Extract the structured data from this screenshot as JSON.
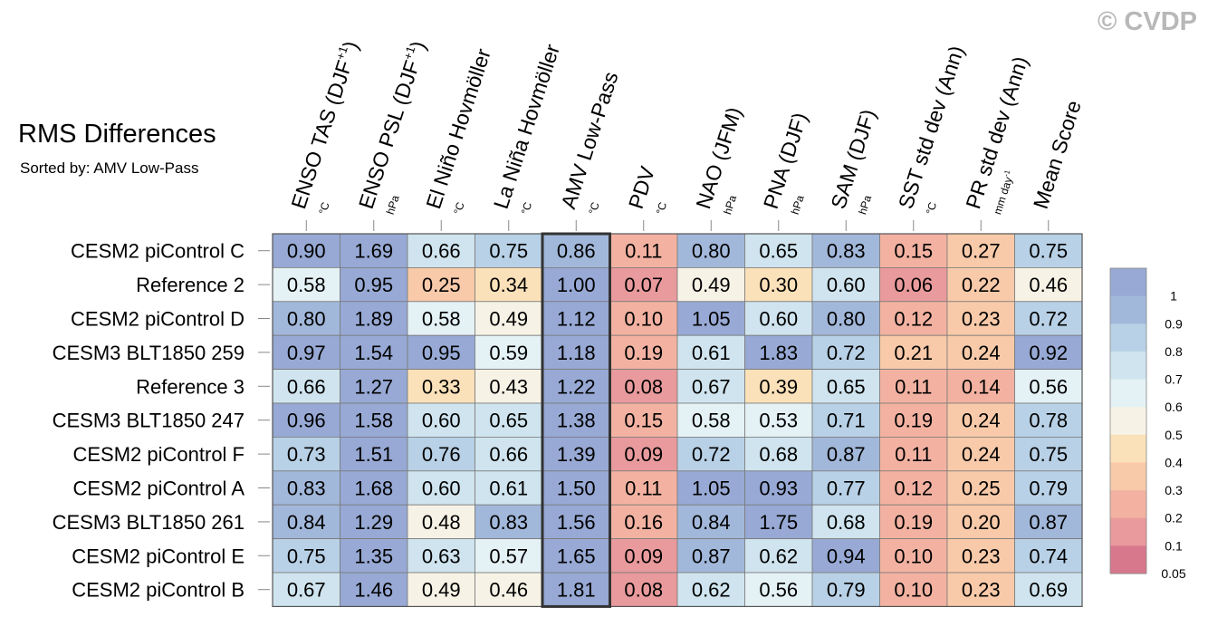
{
  "watermark": "© CVDP",
  "title": "RMS Differences",
  "subtitle": "Sorted by: AMV Low-Pass",
  "chart_data": {
    "type": "heatmap",
    "title": "RMS Differences",
    "sorted_by": "AMV Low-Pass",
    "highlight_column": 4,
    "columns": [
      {
        "label": "ENSO TAS (DJF",
        "sup": "+1",
        "close": ")",
        "unit": "°C"
      },
      {
        "label": "ENSO PSL (DJF",
        "sup": "+1",
        "close": ")",
        "unit": "hPa"
      },
      {
        "label": "El Niño Hovmöller",
        "sup": "",
        "close": "",
        "unit": "°C"
      },
      {
        "label": "La Niña Hovmöller",
        "sup": "",
        "close": "",
        "unit": "°C"
      },
      {
        "label": "AMV Low-Pass",
        "sup": "",
        "close": "",
        "unit": "°C"
      },
      {
        "label": "PDV",
        "sup": "",
        "close": "",
        "unit": "°C"
      },
      {
        "label": "NAO (JFM)",
        "sup": "",
        "close": "",
        "unit": "hPa"
      },
      {
        "label": "PNA (DJF)",
        "sup": "",
        "close": "",
        "unit": "hPa"
      },
      {
        "label": "SAM (DJF)",
        "sup": "",
        "close": "",
        "unit": "hPa"
      },
      {
        "label": "SST std dev (Ann)",
        "sup": "",
        "close": "",
        "unit": "°C"
      },
      {
        "label": "PR std dev (Ann)",
        "sup": "",
        "close": "",
        "unit": "mm day",
        "unit_sup": "-1"
      },
      {
        "label": "Mean Score",
        "sup": "",
        "close": "",
        "unit": ""
      }
    ],
    "rows": [
      "CESM2 piControl C",
      "Reference 2",
      "CESM2 piControl D",
      "CESM3 BLT1850 259",
      "Reference 3",
      "CESM3 BLT1850 247",
      "CESM2 piControl F",
      "CESM2 piControl A",
      "CESM3 BLT1850 261",
      "CESM2 piControl E",
      "CESM2 piControl B"
    ],
    "values": [
      [
        "0.90",
        "1.69",
        "0.66",
        "0.75",
        "0.86",
        "0.11",
        "0.80",
        "0.65",
        "0.83",
        "0.15",
        "0.27",
        "0.75"
      ],
      [
        "0.58",
        "0.95",
        "0.25",
        "0.34",
        "1.00",
        "0.07",
        "0.49",
        "0.30",
        "0.60",
        "0.06",
        "0.22",
        "0.46"
      ],
      [
        "0.80",
        "1.89",
        "0.58",
        "0.49",
        "1.12",
        "0.10",
        "1.05",
        "0.60",
        "0.80",
        "0.12",
        "0.23",
        "0.72"
      ],
      [
        "0.97",
        "1.54",
        "0.95",
        "0.59",
        "1.18",
        "0.19",
        "0.61",
        "1.83",
        "0.72",
        "0.21",
        "0.24",
        "0.92"
      ],
      [
        "0.66",
        "1.27",
        "0.33",
        "0.43",
        "1.22",
        "0.08",
        "0.67",
        "0.39",
        "0.65",
        "0.11",
        "0.14",
        "0.56"
      ],
      [
        "0.96",
        "1.58",
        "0.60",
        "0.65",
        "1.38",
        "0.15",
        "0.58",
        "0.53",
        "0.71",
        "0.19",
        "0.24",
        "0.78"
      ],
      [
        "0.73",
        "1.51",
        "0.76",
        "0.66",
        "1.39",
        "0.09",
        "0.72",
        "0.68",
        "0.87",
        "0.11",
        "0.24",
        "0.75"
      ],
      [
        "0.83",
        "1.68",
        "0.60",
        "0.61",
        "1.50",
        "0.11",
        "1.05",
        "0.93",
        "0.77",
        "0.12",
        "0.25",
        "0.79"
      ],
      [
        "0.84",
        "1.29",
        "0.48",
        "0.83",
        "1.56",
        "0.16",
        "0.84",
        "1.75",
        "0.68",
        "0.19",
        "0.20",
        "0.87"
      ],
      [
        "0.75",
        "1.35",
        "0.63",
        "0.57",
        "1.65",
        "0.09",
        "0.87",
        "0.62",
        "0.94",
        "0.10",
        "0.23",
        "0.74"
      ],
      [
        "0.67",
        "1.46",
        "0.49",
        "0.46",
        "1.81",
        "0.08",
        "0.62",
        "0.56",
        "0.79",
        "0.10",
        "0.23",
        "0.69"
      ]
    ],
    "colorbar": {
      "levels": [
        0.05,
        0.1,
        0.2,
        0.3,
        0.4,
        0.5,
        0.6,
        0.7,
        0.8,
        0.9,
        1
      ],
      "labels": [
        "1",
        "0.9",
        "0.8",
        "0.7",
        "0.6",
        "0.5",
        "0.4",
        "0.3",
        "0.2",
        "0.1",
        "0.05"
      ],
      "colors": [
        "#d7788d",
        "#e99a9c",
        "#f3b2a1",
        "#f8caa9",
        "#fbe1b9",
        "#f6f2e5",
        "#e4f1f5",
        "#cfe4ee",
        "#b8d1e6",
        "#a2b8da",
        "#97a9d4"
      ]
    }
  }
}
